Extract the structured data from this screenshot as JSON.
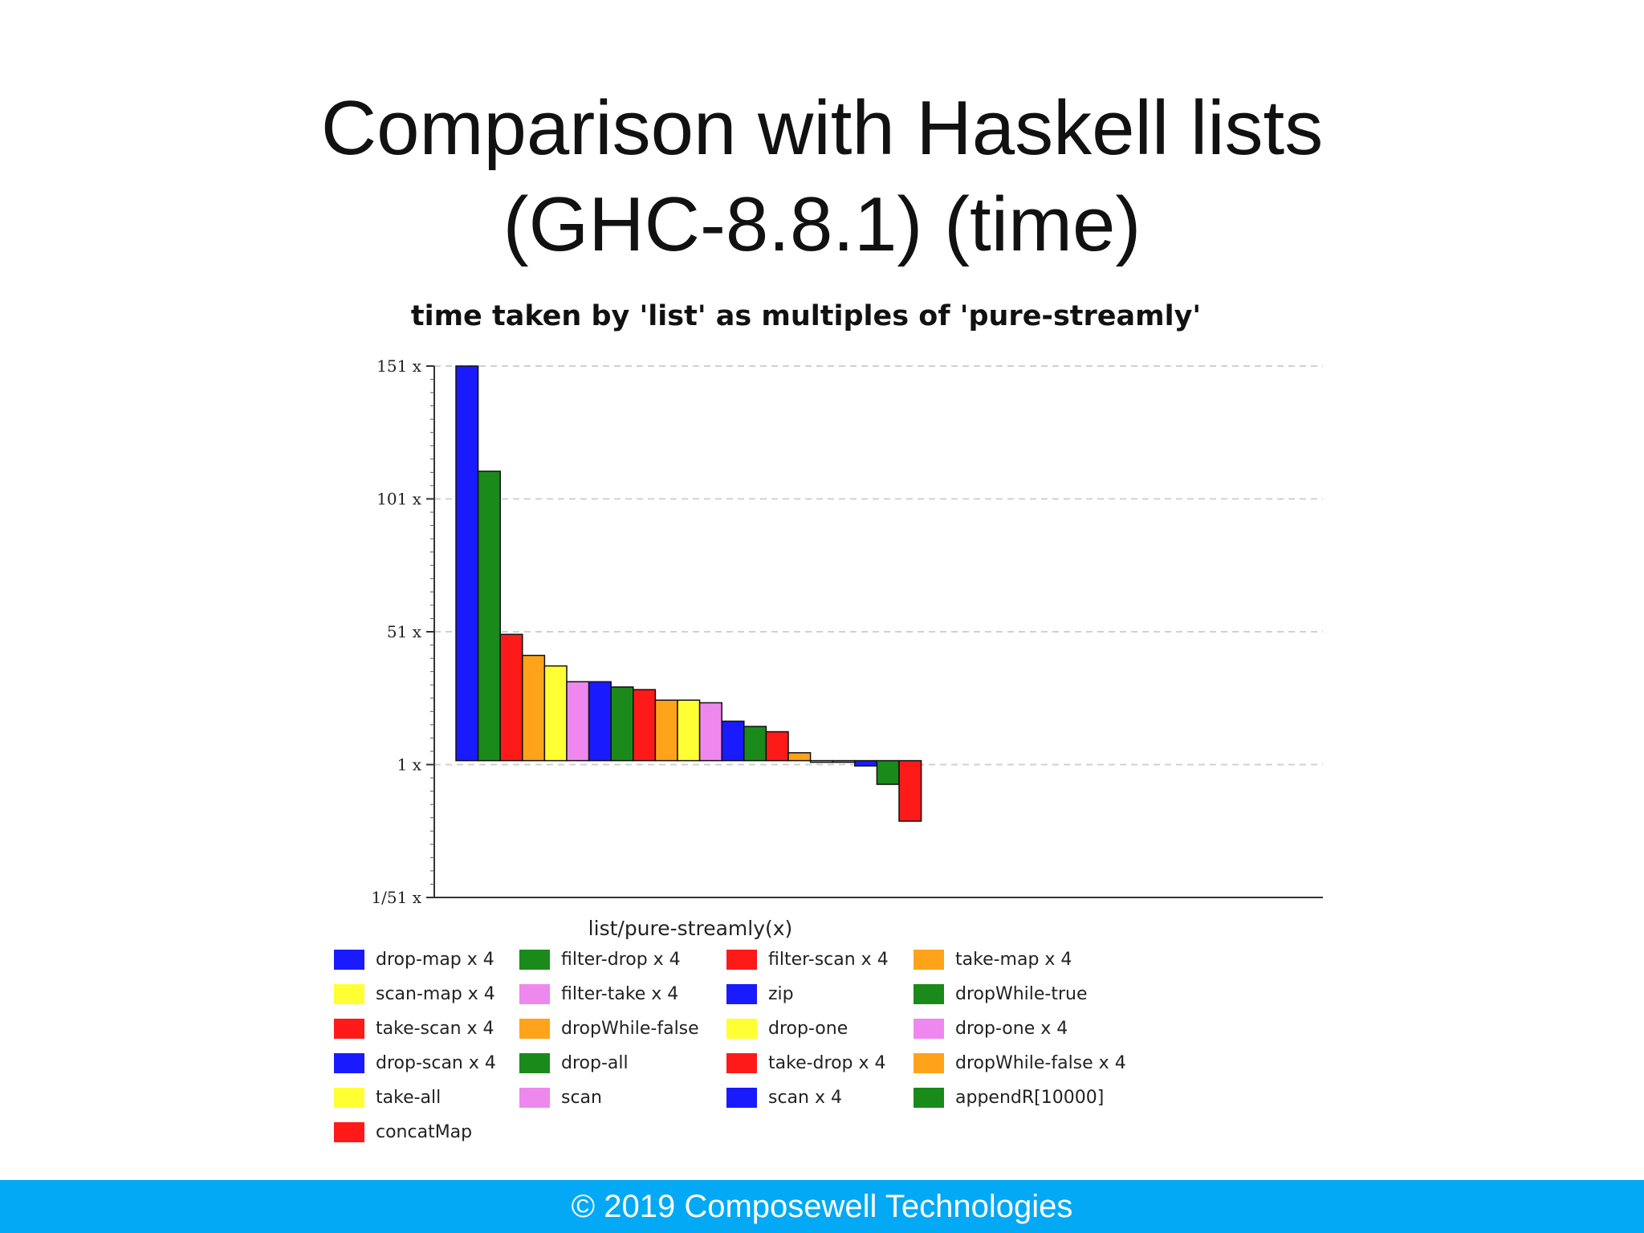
{
  "slide": {
    "title_line1": "Comparison with Haskell lists",
    "title_line2": "(GHC-8.8.1) (time)",
    "footer": "© 2019 Composewell Technologies"
  },
  "colors": {
    "blue": "#1a1aff",
    "green": "#1a8a1a",
    "red": "#ff1a1a",
    "orange": "#ffa31a",
    "yellow": "#ffff33",
    "pink": "#ee88ee"
  },
  "chart_data": {
    "type": "bar",
    "title": "time taken by 'list' as multiples of 'pure-streamly'",
    "xlabel": "list/pure-streamly(x)",
    "ylabel": "",
    "yticks": [
      "151 x",
      "101 x",
      "51 x",
      "1 x",
      "1/51 x"
    ],
    "ylim": [
      -51,
      151
    ],
    "grid": true,
    "legend_position": "bottom",
    "categories": [
      "drop-map x 4",
      "filter-drop x 4",
      "filter-scan x 4",
      "take-map x 4",
      "scan-map x 4",
      "filter-take x 4",
      "zip",
      "dropWhile-true",
      "take-scan x 4",
      "dropWhile-false",
      "drop-one",
      "drop-one x 4",
      "drop-scan x 4",
      "drop-all",
      "take-drop x 4",
      "dropWhile-false x 4",
      "take-all",
      "scan",
      "scan x 4",
      "appendR[10000]",
      "concatMap"
    ],
    "colors": [
      "blue",
      "green",
      "red",
      "orange",
      "yellow",
      "pink",
      "blue",
      "green",
      "red",
      "orange",
      "yellow",
      "pink",
      "blue",
      "green",
      "red",
      "orange",
      "yellow",
      "pink",
      "blue",
      "green",
      "red"
    ],
    "values": [
      151,
      111,
      49,
      41,
      37,
      31,
      31,
      29,
      28,
      24,
      24,
      23,
      16,
      14,
      12,
      4,
      1,
      1,
      -1,
      -8,
      -22
    ]
  }
}
